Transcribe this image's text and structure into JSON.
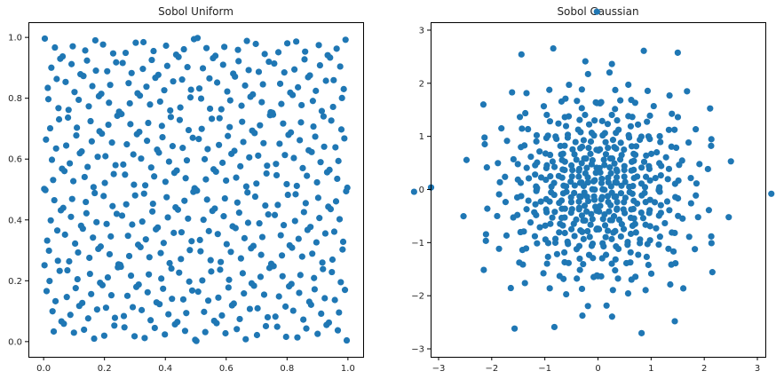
{
  "chart_data": [
    {
      "type": "scatter",
      "title": "Sobol Uniform",
      "xlim": [
        -0.05,
        1.05
      ],
      "ylim": [
        -0.05,
        1.05
      ],
      "xticks": [
        "0.0",
        "0.2",
        "0.4",
        "0.6",
        "0.8",
        "1.0"
      ],
      "yticks": [
        "0.0",
        "0.2",
        "0.4",
        "0.6",
        "0.8",
        "1.0"
      ],
      "color": "#1f77b4",
      "series": [
        {
          "points": []
        }
      ],
      "point_count": 512,
      "sequence": "sobol-2d",
      "grid": false,
      "legend": "none"
    },
    {
      "type": "scatter",
      "title": "Sobol Gaussian",
      "xlim": [
        -3.15,
        3.15
      ],
      "ylim": [
        -3.15,
        3.15
      ],
      "xticks": [
        "−3",
        "−2",
        "−1",
        "0",
        "1",
        "2",
        "3"
      ],
      "yticks": [
        "−3",
        "−2",
        "−1",
        "0",
        "1",
        "2",
        "3"
      ],
      "color": "#1f77b4",
      "series": [
        {
          "points": []
        }
      ],
      "point_count": 512,
      "sequence": "sobol-2d-gaussian",
      "grid": false,
      "legend": "none"
    }
  ]
}
